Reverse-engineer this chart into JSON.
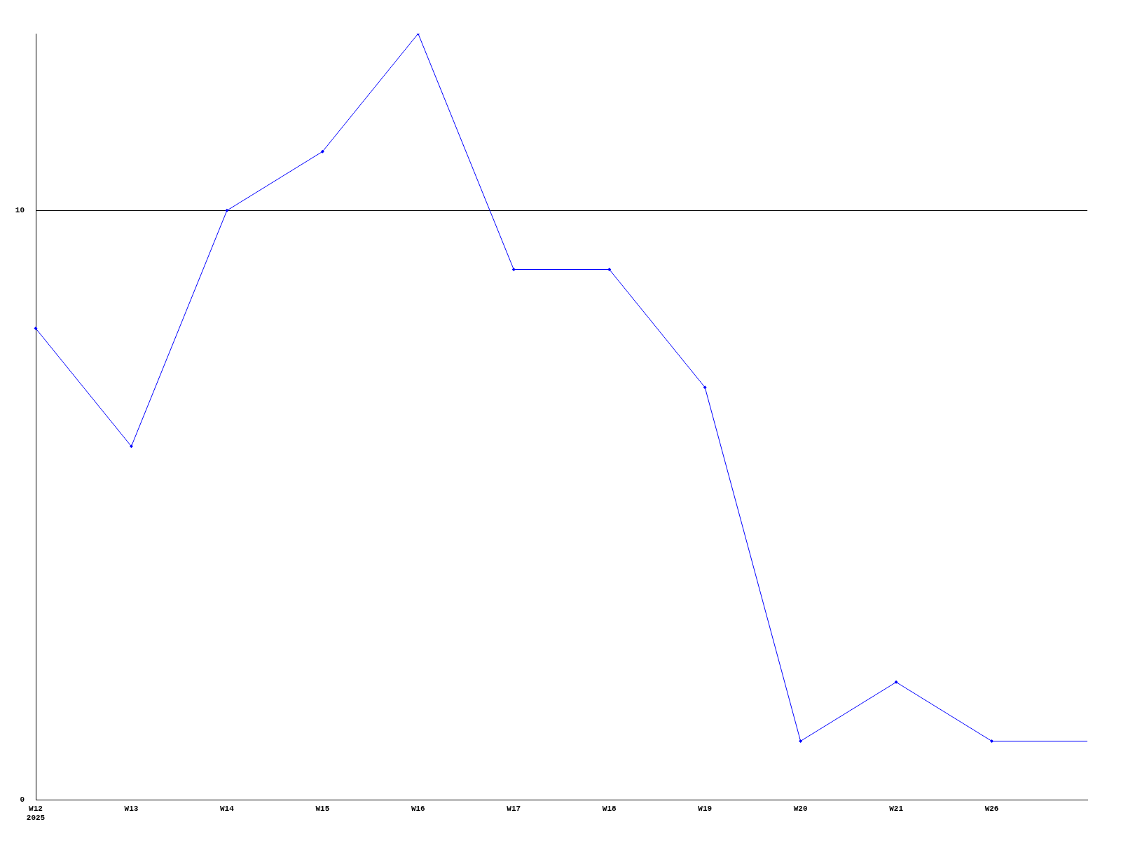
{
  "chart_data": {
    "type": "line",
    "categories": [
      "W12\n2025",
      "W13",
      "W14",
      "W15",
      "W16",
      "W17",
      "W18",
      "W19",
      "W20",
      "W21",
      "W26",
      null
    ],
    "series": [
      {
        "color": "#0000ff",
        "values": [
          8,
          6,
          10,
          11,
          13,
          9,
          9,
          7,
          1,
          2,
          1,
          1
        ]
      }
    ],
    "ylim": [
      0,
      13
    ],
    "yticks": [
      0,
      10
    ],
    "grid": "y",
    "legend": false,
    "marker": "diamond",
    "line_style": "solid"
  }
}
